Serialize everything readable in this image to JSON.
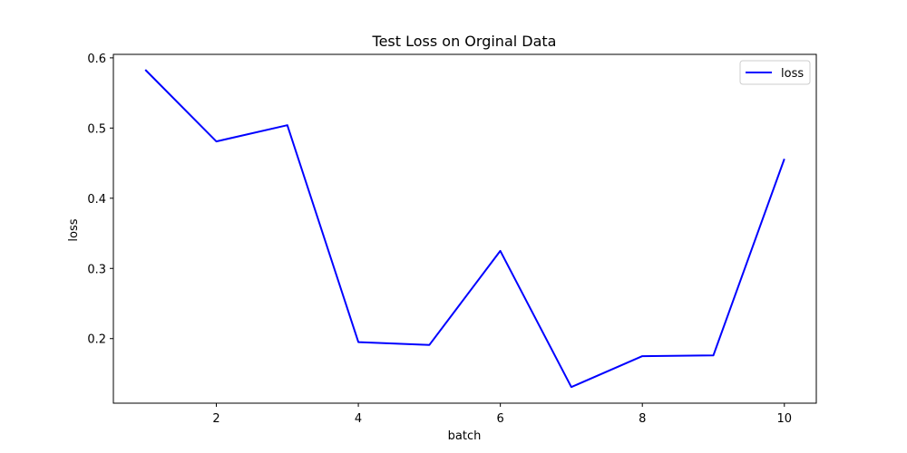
{
  "chart_data": {
    "type": "line",
    "title": "Test Loss on Orginal Data",
    "xlabel": "batch",
    "ylabel": "loss",
    "xlim": [
      0.55,
      10.45
    ],
    "ylim": [
      0.108,
      0.605
    ],
    "xticks": [
      2,
      4,
      6,
      8,
      10
    ],
    "xtick_labels": [
      "2",
      "4",
      "6",
      "8",
      "10"
    ],
    "yticks": [
      0.2,
      0.3,
      0.4,
      0.5,
      0.6
    ],
    "ytick_labels": [
      "0.2",
      "0.3",
      "0.4",
      "0.5",
      "0.6"
    ],
    "grid": false,
    "legend_position": "top-right",
    "series": [
      {
        "name": "loss",
        "color": "#0000ff",
        "x": [
          1,
          2,
          3,
          4,
          5,
          6,
          7,
          8,
          9,
          10
        ],
        "y": [
          0.583,
          0.481,
          0.504,
          0.195,
          0.191,
          0.325,
          0.131,
          0.175,
          0.176,
          0.456
        ]
      }
    ]
  }
}
